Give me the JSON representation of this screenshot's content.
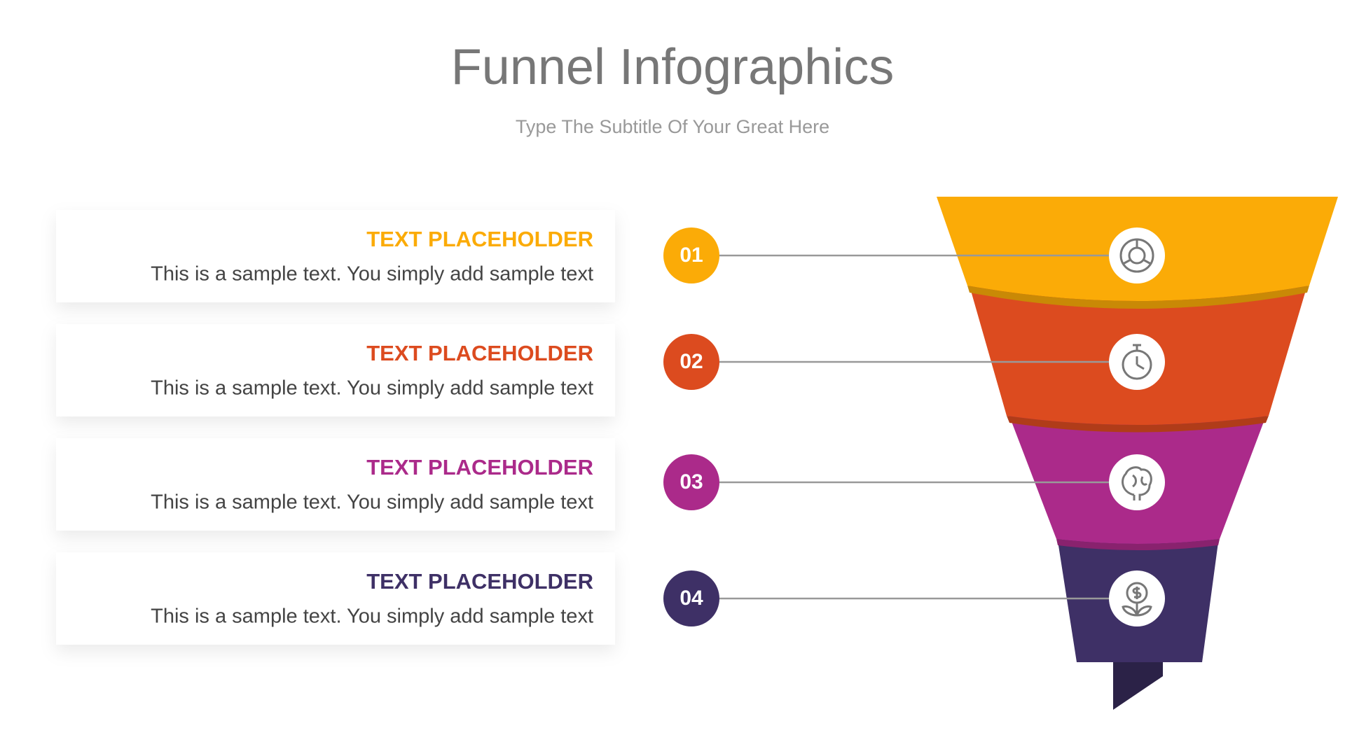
{
  "header": {
    "title": "Funnel Infographics",
    "subtitle": "Type The Subtitle Of Your Great Here"
  },
  "items": [
    {
      "number": "01",
      "heading": "TEXT PLACEHOLDER",
      "text": "This is a sample text. You simply add sample text",
      "color": "#fbab07"
    },
    {
      "number": "02",
      "heading": "TEXT PLACEHOLDER",
      "text": "This is a sample text. You simply add sample text",
      "color": "#dc4b1f"
    },
    {
      "number": "03",
      "heading": "TEXT PLACEHOLDER",
      "text": "This is a sample text. You simply add sample text",
      "color": "#ab2a8a"
    },
    {
      "number": "04",
      "heading": "TEXT PLACEHOLDER",
      "text": "This is a sample text. You simply add sample text",
      "color": "#3e3066"
    }
  ]
}
